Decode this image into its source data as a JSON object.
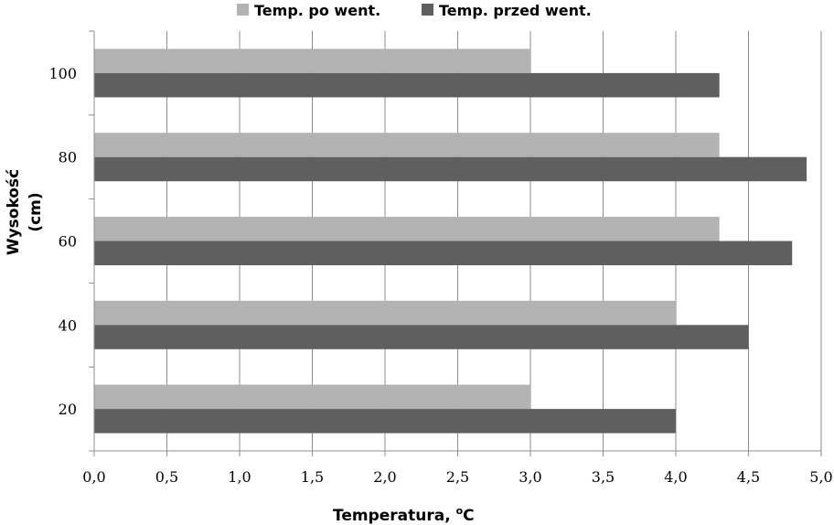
{
  "chart_data": {
    "type": "bar",
    "orientation": "horizontal",
    "categories": [
      "20",
      "40",
      "60",
      "80",
      "100"
    ],
    "series": [
      {
        "name": "Temp. po went.",
        "values": [
          3.0,
          4.0,
          4.3,
          4.3,
          3.0
        ],
        "color": "#b3b3b3"
      },
      {
        "name": "Temp. przed went.",
        "values": [
          4.0,
          4.5,
          4.8,
          4.9,
          4.3
        ],
        "color": "#5f5f5f"
      }
    ],
    "xlabel": "Temperatura, ",
    "xlabel_sup": "o",
    "xlabel_unit": "C",
    "ylabel_line1": "Wysokość",
    "ylabel_line2": "(cm)",
    "xlim": [
      0,
      5
    ],
    "xticks": [
      "0,0",
      "0,5",
      "1,0",
      "1,5",
      "2,0",
      "2,5",
      "3,0",
      "3,5",
      "4,0",
      "4,5",
      "5,0"
    ],
    "grid": "vertical",
    "legend_position": "top",
    "gridline_color": "#8c8c8c"
  }
}
